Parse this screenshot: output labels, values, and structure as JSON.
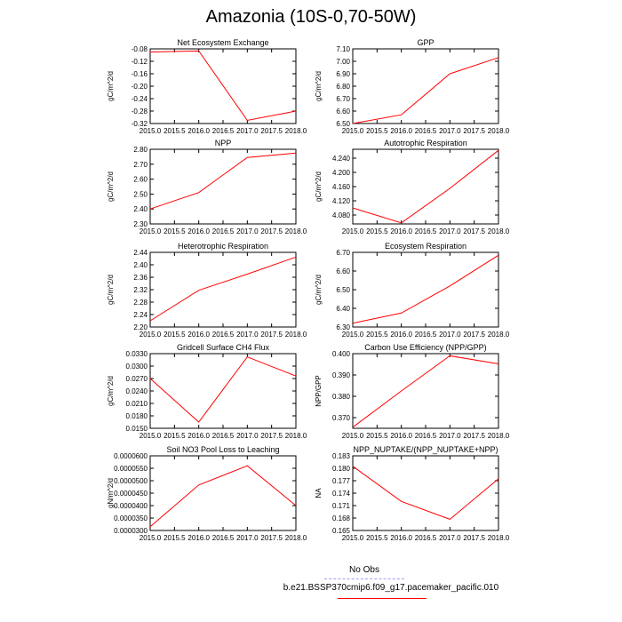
{
  "title": "Amazonia (10S-0,70-50W)",
  "legend": {
    "obs_label": "No Obs",
    "obs_color": "#a0a0ff",
    "model_label": "b.e21.BSSP370cmip6.f09_g17.pacemaker_pacific.010",
    "model_color": "#ff0000"
  },
  "chart_data": [
    {
      "type": "line",
      "title": "Net Ecosystem Exchange",
      "ylabel": "gC/m^2/d",
      "xlabel": "",
      "x": [
        2015.0,
        2016.0,
        2017.0,
        2018.0
      ],
      "xticks": [
        "2015.0",
        "2015.5",
        "2016.0",
        "2016.5",
        "2017.0",
        "2017.5",
        "2018.0"
      ],
      "xlim": [
        2015.0,
        2018.0
      ],
      "ylim": [
        -0.32,
        -0.08
      ],
      "yticks": [
        "-0.08",
        "-0.12",
        "-0.16",
        "-0.20",
        "-0.24",
        "-0.28",
        "-0.32"
      ],
      "series": [
        {
          "values": [
            -0.09,
            -0.087,
            -0.31,
            -0.28
          ],
          "color": "#ff0000"
        }
      ]
    },
    {
      "type": "line",
      "title": "GPP",
      "ylabel": "gC/m^2/d",
      "xlabel": "",
      "x": [
        2015.0,
        2016.0,
        2017.0,
        2018.0
      ],
      "xticks": [
        "2015.0",
        "2015.5",
        "2016.0",
        "2016.5",
        "2017.0",
        "2017.5",
        "2018.0"
      ],
      "xlim": [
        2015.0,
        2018.0
      ],
      "ylim": [
        6.5,
        7.1
      ],
      "yticks": [
        "7.10",
        "7.00",
        "6.90",
        "6.80",
        "6.70",
        "6.60",
        "6.50"
      ],
      "series": [
        {
          "values": [
            6.5,
            6.57,
            6.9,
            7.03
          ],
          "color": "#ff0000"
        }
      ]
    },
    {
      "type": "line",
      "title": "NPP",
      "ylabel": "gC/m^2/d",
      "xlabel": "",
      "x": [
        2015.0,
        2016.0,
        2017.0,
        2018.0
      ],
      "xticks": [
        "2015.0",
        "2015.5",
        "2016.0",
        "2016.5",
        "2017.0",
        "2017.5",
        "2018.0"
      ],
      "xlim": [
        2015.0,
        2018.0
      ],
      "ylim": [
        2.3,
        2.8
      ],
      "yticks": [
        "2.80",
        "2.70",
        "2.60",
        "2.50",
        "2.40",
        "2.30"
      ],
      "series": [
        {
          "values": [
            2.4,
            2.51,
            2.745,
            2.775
          ],
          "color": "#ff0000"
        }
      ]
    },
    {
      "type": "line",
      "title": "Autotrophic Respiration",
      "ylabel": "gC/m^2/d",
      "xlabel": "",
      "x": [
        2015.0,
        2016.0,
        2017.0,
        2018.0
      ],
      "xticks": [
        "2015.0",
        "2015.5",
        "2016.0",
        "2016.5",
        "2017.0",
        "2017.5",
        "2018.0"
      ],
      "xlim": [
        2015.0,
        2018.0
      ],
      "ylim": [
        4.055,
        4.265
      ],
      "yticks": [
        "4.240",
        "4.200",
        "4.160",
        "4.120",
        "4.080"
      ],
      "ytick_values": [
        4.24,
        4.2,
        4.16,
        4.12,
        4.08
      ],
      "series": [
        {
          "values": [
            4.1,
            4.058,
            4.155,
            4.262
          ],
          "color": "#ff0000"
        }
      ]
    },
    {
      "type": "line",
      "title": "Heterotrophic Respiration",
      "ylabel": "gC/m^2/d",
      "xlabel": "",
      "x": [
        2015.0,
        2016.0,
        2017.0,
        2018.0
      ],
      "xticks": [
        "2015.0",
        "2015.5",
        "2016.0",
        "2016.5",
        "2017.0",
        "2017.5",
        "2018.0"
      ],
      "xlim": [
        2015.0,
        2018.0
      ],
      "ylim": [
        2.2,
        2.44
      ],
      "yticks": [
        "2.44",
        "2.40",
        "2.36",
        "2.32",
        "2.28",
        "2.24",
        "2.20"
      ],
      "series": [
        {
          "values": [
            2.22,
            2.318,
            2.37,
            2.425
          ],
          "color": "#ff0000"
        }
      ]
    },
    {
      "type": "line",
      "title": "Ecosystem Respiration",
      "ylabel": "gC/m^2/d",
      "xlabel": "",
      "x": [
        2015.0,
        2016.0,
        2017.0,
        2018.0
      ],
      "xticks": [
        "2015.0",
        "2015.5",
        "2016.0",
        "2016.5",
        "2017.0",
        "2017.5",
        "2018.0"
      ],
      "xlim": [
        2015.0,
        2018.0
      ],
      "ylim": [
        6.3,
        6.7
      ],
      "yticks": [
        "6.70",
        "6.60",
        "6.50",
        "6.40",
        "6.30"
      ],
      "series": [
        {
          "values": [
            6.32,
            6.375,
            6.52,
            6.685
          ],
          "color": "#ff0000"
        }
      ]
    },
    {
      "type": "line",
      "title": "Gridcell Surface CH4 Flux",
      "ylabel": "gC/m^2/d",
      "xlabel": "",
      "x": [
        2015.0,
        2016.0,
        2017.0,
        2018.0
      ],
      "xticks": [
        "2015.0",
        "2015.5",
        "2016.0",
        "2016.5",
        "2017.0",
        "2017.5",
        "2018.0"
      ],
      "xlim": [
        2015.0,
        2018.0
      ],
      "ylim": [
        0.015,
        0.033
      ],
      "yticks": [
        "0.0330",
        "0.0300",
        "0.0270",
        "0.0240",
        "0.0210",
        "0.0180",
        "0.0150"
      ],
      "series": [
        {
          "values": [
            0.027,
            0.0165,
            0.0322,
            0.0276
          ],
          "color": "#ff0000"
        }
      ]
    },
    {
      "type": "line",
      "title": "Carbon Use Efficiency (NPP/GPP)",
      "ylabel": "NPP/GPP",
      "xlabel": "",
      "x": [
        2015.0,
        2016.0,
        2017.0,
        2018.0
      ],
      "xticks": [
        "2015.0",
        "2015.5",
        "2016.0",
        "2016.5",
        "2017.0",
        "2017.5",
        "2018.0"
      ],
      "xlim": [
        2015.0,
        2018.0
      ],
      "ylim": [
        0.365,
        0.4
      ],
      "yticks": [
        "0.400",
        "0.390",
        "0.380",
        "0.370"
      ],
      "ytick_values": [
        0.4,
        0.39,
        0.38,
        0.37
      ],
      "series": [
        {
          "values": [
            0.3655,
            0.3825,
            0.399,
            0.3952
          ],
          "color": "#ff0000"
        }
      ]
    },
    {
      "type": "line",
      "title": "Soil NO3 Pool Loss to Leaching",
      "ylabel": "gN/m^2/d",
      "xlabel": "",
      "x": [
        2015.0,
        2016.0,
        2017.0,
        2018.0
      ],
      "xticks": [
        "2015.0",
        "2015.5",
        "2016.0",
        "2016.5",
        "2017.0",
        "2017.5",
        "2018.0"
      ],
      "xlim": [
        2015.0,
        2018.0
      ],
      "ylim": [
        3e-05,
        6e-05
      ],
      "yticks": [
        "0.0000600",
        "0.0000550",
        "0.0000500",
        "0.0000450",
        "0.0000400",
        "0.0000350",
        "0.0000300"
      ],
      "series": [
        {
          "values": [
            3.15e-05,
            4.83e-05,
            5.6e-05,
            4e-05
          ],
          "color": "#ff0000"
        }
      ]
    },
    {
      "type": "line",
      "title": "NPP_NUPTAKE/(NPP_NUPTAKE+NPP)",
      "ylabel": "NA",
      "xlabel": "",
      "x": [
        2015.0,
        2016.0,
        2017.0,
        2018.0
      ],
      "xticks": [
        "2015.0",
        "2015.5",
        "2016.0",
        "2016.5",
        "2017.0",
        "2017.5",
        "2018.0"
      ],
      "xlim": [
        2015.0,
        2018.0
      ],
      "ylim": [
        0.165,
        0.183
      ],
      "yticks": [
        "0.183",
        "0.180",
        "0.177",
        "0.174",
        "0.171",
        "0.168",
        "0.165"
      ],
      "series": [
        {
          "values": [
            0.1805,
            0.172,
            0.1677,
            0.1775
          ],
          "color": "#ff0000"
        }
      ]
    }
  ]
}
